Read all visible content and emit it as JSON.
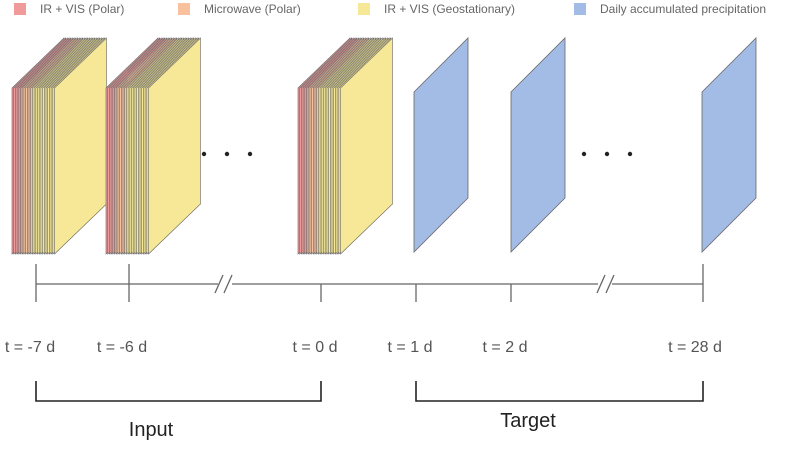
{
  "legend": [
    {
      "label": "IR + VIS (Polar)",
      "color": "#f19a9a"
    },
    {
      "label": "Microwave (Polar)",
      "color": "#f6c19c"
    },
    {
      "label": "IR + VIS (Geostationary)",
      "color": "#f6e896"
    },
    {
      "label": "Daily accumulated precipitation",
      "color": "#a3bce6"
    }
  ],
  "colors": {
    "polar_ir_vis": "#f19a9a",
    "microwave": "#f6c19c",
    "geostationary": "#f6e896",
    "precipitation": "#a3bce6",
    "stroke": "#666666",
    "axis": "#666666",
    "bracket": "#222222"
  },
  "timeline": {
    "ticks": [
      "t = -7 d",
      "t = -6 d",
      "t = 0 d",
      "t = 1 d",
      "t = 2 d",
      "t = 28 d"
    ],
    "ellipsis": ". . ."
  },
  "groups": {
    "input": "Input",
    "target": "Target"
  }
}
